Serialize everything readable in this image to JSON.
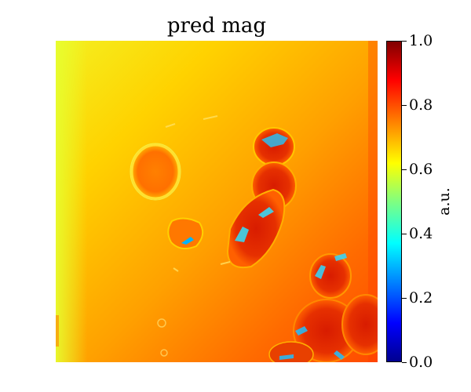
{
  "title": "pred mag",
  "colorbar": {
    "label": "a.u.",
    "colormap": "jet",
    "range": [
      0.0,
      1.0
    ],
    "ticks": [
      "0.0",
      "0.2",
      "0.4",
      "0.6",
      "0.8",
      "1.0"
    ]
  },
  "image": {
    "description_colors": {
      "background_left": "#f0f020",
      "background_mid": "#ffb400",
      "background_right": "#ff6000",
      "cell_dark": "#c81400",
      "cell_speck": "#00d0ff"
    }
  }
}
